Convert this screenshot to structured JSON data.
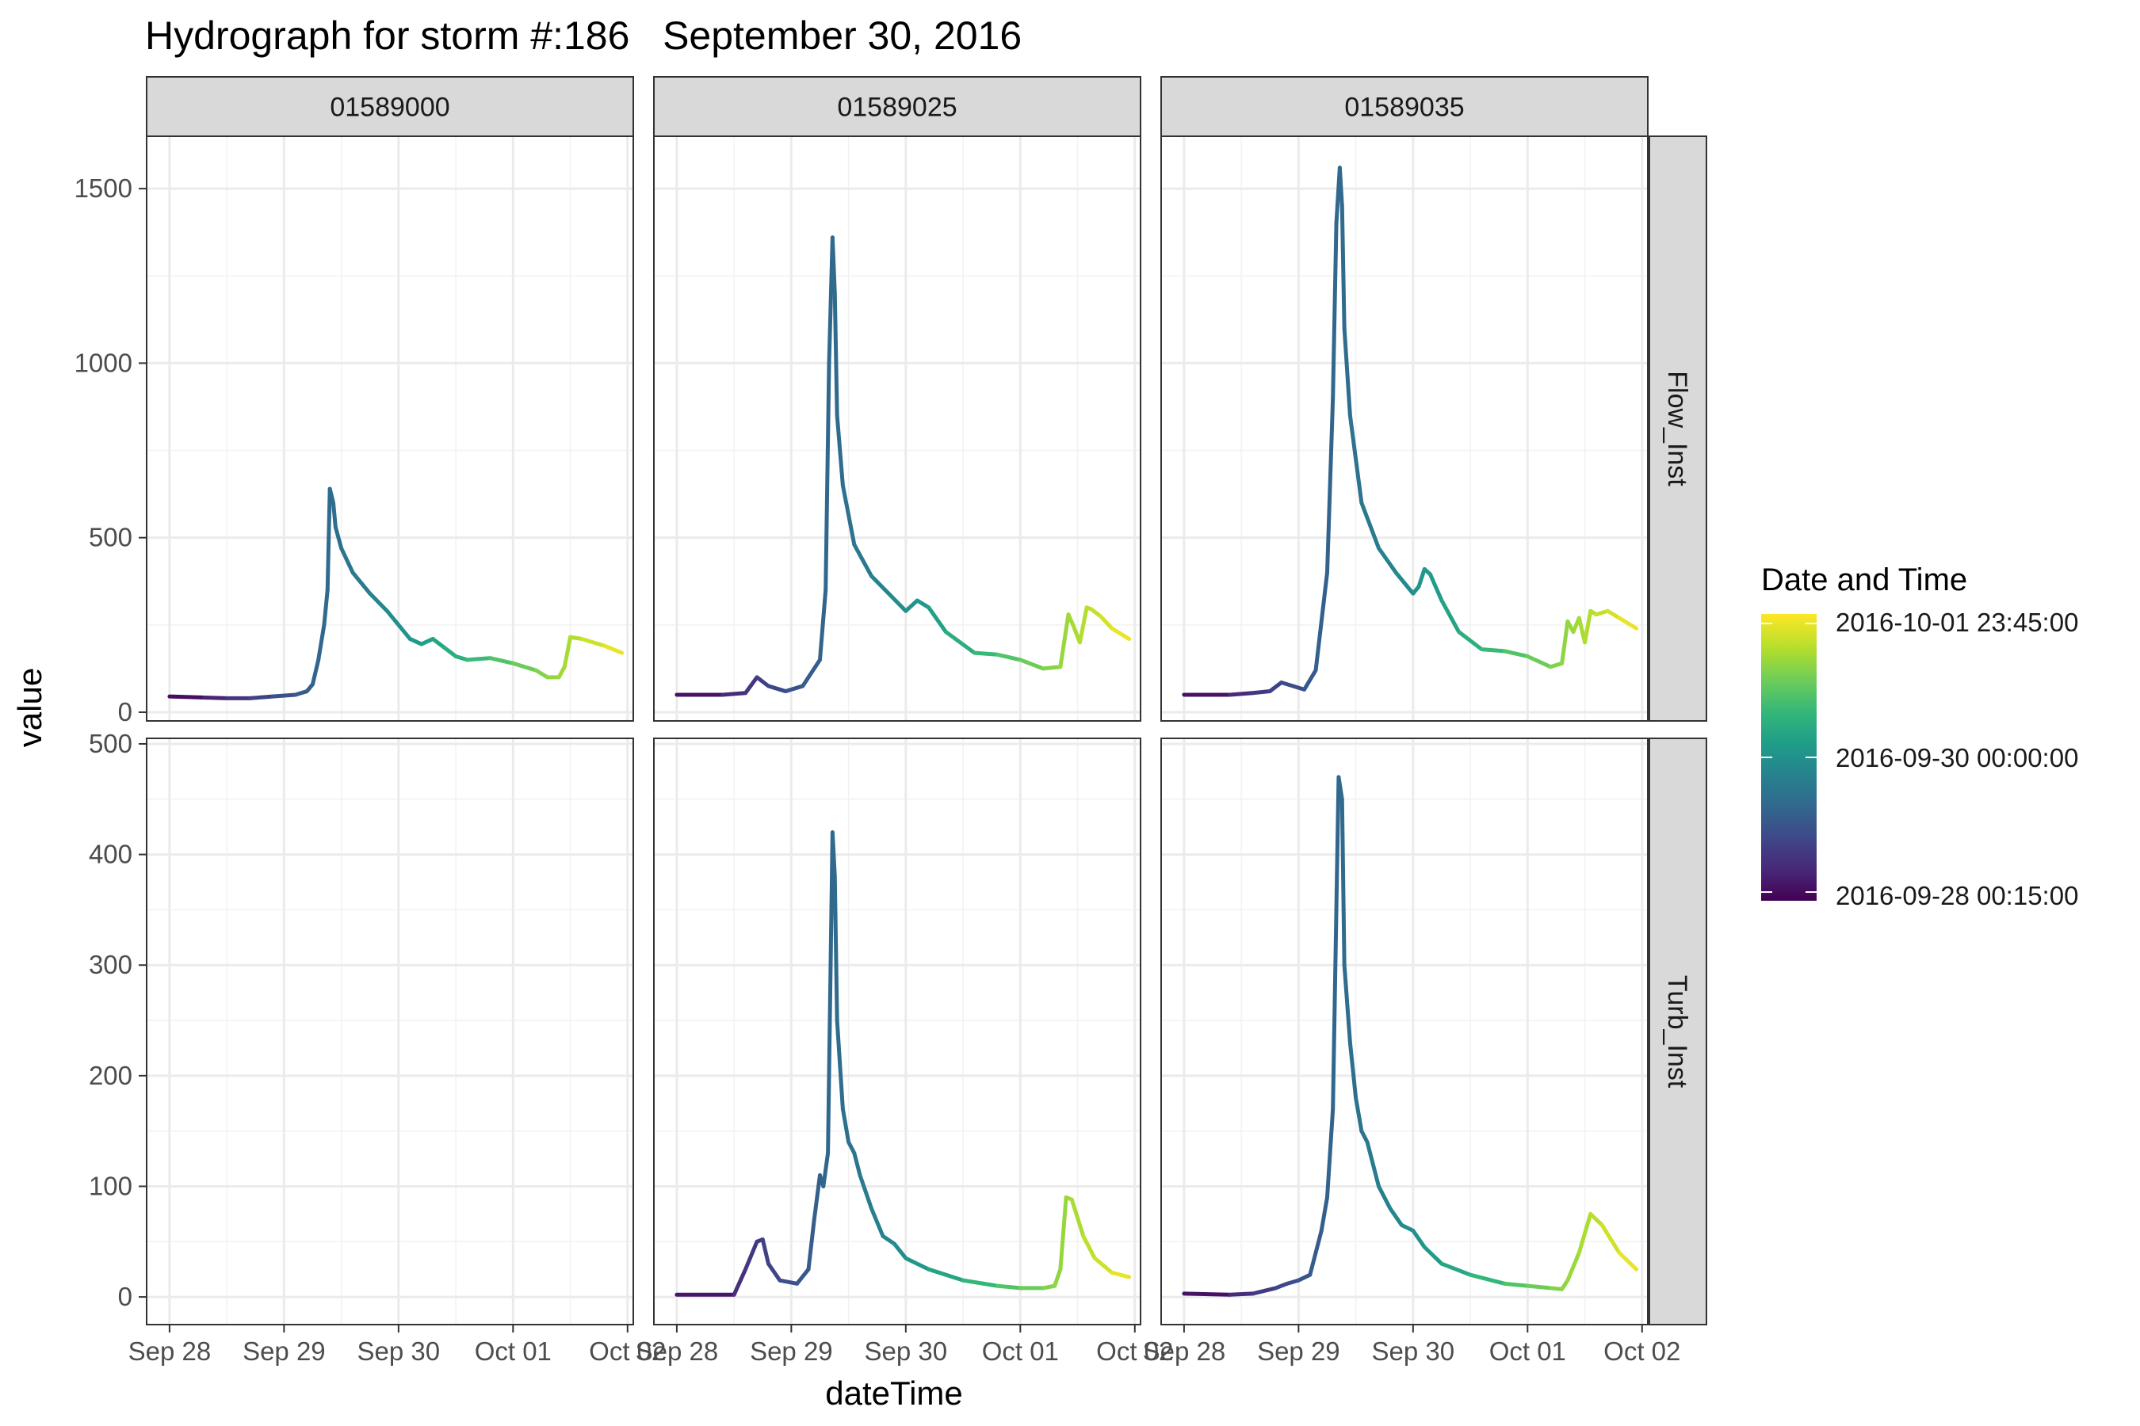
{
  "chart_data": {
    "type": "line",
    "title": "Hydrograph for storm #:186   September 30, 2016",
    "xlabel": "dateTime",
    "ylabel": "value",
    "facet_columns": [
      "01589000",
      "01589025",
      "01589035"
    ],
    "facet_rows": [
      "Flow_Inst",
      "Turb_Inst"
    ],
    "x_ticks": [
      "Sep 28",
      "Sep 29",
      "Sep 30",
      "Oct 01",
      "Oct 02"
    ],
    "y_ticks_flow": [
      "0",
      "500",
      "1000",
      "1500"
    ],
    "y_ticks_turb": [
      "0",
      "100",
      "200",
      "300",
      "400",
      "500"
    ],
    "xlim_days": [
      -0.2,
      4.05
    ],
    "ylim_flow": [
      -25,
      1650
    ],
    "ylim_turb": [
      -25,
      505
    ],
    "grid": true,
    "legend": {
      "title": "Date and Time",
      "position": "right",
      "labels": [
        "2016-10-01 23:45:00",
        "2016-09-30 00:00:00",
        "2016-09-28 00:15:00"
      ],
      "colormap": "viridis",
      "colors": [
        "#440154",
        "#482878",
        "#3e4989",
        "#31688e",
        "#26828e",
        "#1f9e89",
        "#35b779",
        "#6dcd59",
        "#b4de2c",
        "#fde725"
      ]
    },
    "series": [
      {
        "station": "01589000",
        "variable": "Flow_Inst",
        "x": [
          0,
          0.3,
          0.5,
          0.7,
          0.9,
          1.1,
          1.2,
          1.25,
          1.3,
          1.35,
          1.38,
          1.4,
          1.43,
          1.45,
          1.5,
          1.6,
          1.75,
          1.9,
          2.0,
          2.1,
          2.2,
          2.3,
          2.4,
          2.5,
          2.6,
          2.8,
          3.0,
          3.2,
          3.3,
          3.4,
          3.45,
          3.5,
          3.6,
          3.8,
          3.95
        ],
        "y": [
          45,
          42,
          40,
          40,
          45,
          50,
          60,
          80,
          150,
          250,
          350,
          640,
          600,
          530,
          470,
          400,
          340,
          290,
          250,
          210,
          195,
          210,
          185,
          160,
          150,
          155,
          140,
          120,
          100,
          100,
          130,
          215,
          210,
          190,
          170
        ]
      },
      {
        "station": "01589000",
        "variable": "Turb_Inst",
        "x": [],
        "y": []
      },
      {
        "station": "01589025",
        "variable": "Flow_Inst",
        "x": [
          0,
          0.4,
          0.6,
          0.7,
          0.8,
          0.95,
          1.1,
          1.25,
          1.3,
          1.33,
          1.36,
          1.38,
          1.4,
          1.45,
          1.55,
          1.7,
          1.85,
          2.0,
          2.1,
          2.2,
          2.35,
          2.6,
          2.8,
          3.0,
          3.2,
          3.35,
          3.42,
          3.46,
          3.52,
          3.58,
          3.62,
          3.7,
          3.8,
          3.95
        ],
        "y": [
          50,
          50,
          55,
          100,
          75,
          60,
          75,
          150,
          350,
          1000,
          1360,
          1200,
          850,
          650,
          480,
          390,
          340,
          290,
          320,
          300,
          230,
          170,
          165,
          150,
          125,
          130,
          280,
          250,
          200,
          300,
          295,
          275,
          240,
          210
        ]
      },
      {
        "station": "01589025",
        "variable": "Turb_Inst",
        "x": [
          0,
          0.5,
          0.6,
          0.7,
          0.75,
          0.8,
          0.9,
          1.05,
          1.15,
          1.2,
          1.25,
          1.28,
          1.32,
          1.36,
          1.38,
          1.4,
          1.45,
          1.5,
          1.55,
          1.6,
          1.7,
          1.8,
          1.9,
          2.0,
          2.2,
          2.5,
          2.8,
          3.0,
          3.2,
          3.3,
          3.35,
          3.4,
          3.45,
          3.55,
          3.65,
          3.8,
          3.95
        ],
        "y": [
          2,
          2,
          25,
          50,
          52,
          30,
          15,
          12,
          25,
          70,
          110,
          100,
          130,
          420,
          380,
          250,
          170,
          140,
          130,
          110,
          80,
          55,
          48,
          35,
          25,
          15,
          10,
          8,
          8,
          10,
          25,
          90,
          88,
          55,
          35,
          22,
          18
        ]
      },
      {
        "station": "01589035",
        "variable": "Flow_Inst",
        "x": [
          0,
          0.4,
          0.6,
          0.75,
          0.85,
          1.05,
          1.15,
          1.25,
          1.3,
          1.33,
          1.36,
          1.38,
          1.4,
          1.45,
          1.55,
          1.7,
          1.85,
          2.0,
          2.05,
          2.1,
          2.15,
          2.25,
          2.4,
          2.6,
          2.8,
          3.0,
          3.2,
          3.3,
          3.35,
          3.4,
          3.45,
          3.5,
          3.55,
          3.6,
          3.7,
          3.8,
          3.95
        ],
        "y": [
          50,
          50,
          55,
          60,
          85,
          65,
          120,
          400,
          900,
          1400,
          1560,
          1450,
          1100,
          850,
          600,
          470,
          400,
          340,
          360,
          410,
          395,
          320,
          230,
          180,
          175,
          160,
          130,
          140,
          260,
          230,
          270,
          200,
          290,
          280,
          290,
          270,
          240
        ]
      },
      {
        "station": "01589035",
        "variable": "Turb_Inst",
        "x": [
          0,
          0.4,
          0.6,
          0.8,
          0.9,
          1.0,
          1.1,
          1.2,
          1.25,
          1.3,
          1.35,
          1.38,
          1.4,
          1.45,
          1.5,
          1.55,
          1.6,
          1.7,
          1.8,
          1.9,
          2.0,
          2.1,
          2.25,
          2.5,
          2.8,
          3.0,
          3.2,
          3.3,
          3.35,
          3.45,
          3.55,
          3.65,
          3.8,
          3.95
        ],
        "y": [
          3,
          2,
          3,
          8,
          12,
          15,
          20,
          60,
          90,
          170,
          470,
          450,
          300,
          230,
          180,
          150,
          140,
          100,
          80,
          65,
          60,
          45,
          30,
          20,
          12,
          10,
          8,
          7,
          15,
          40,
          75,
          65,
          40,
          25
        ]
      }
    ]
  }
}
